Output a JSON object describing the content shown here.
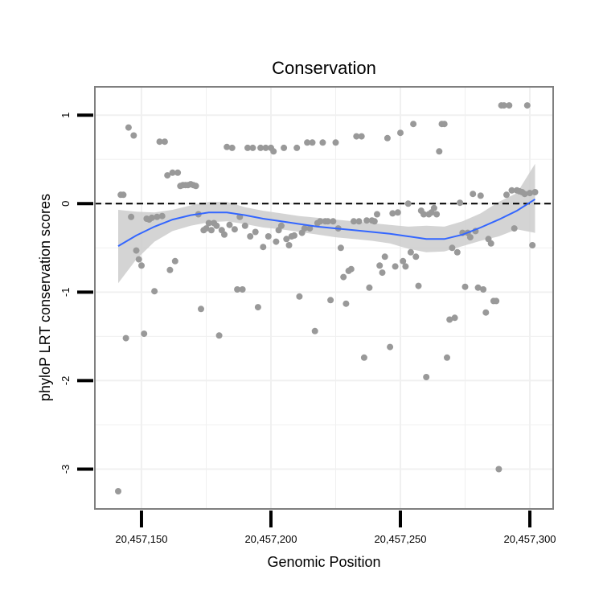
{
  "chart_data": {
    "type": "scatter",
    "title": "Conservation",
    "xlabel": "Genomic Position",
    "ylabel": "phyloP LRT conservation scores",
    "xlim": [
      20457132,
      20457309
    ],
    "ylim": [
      -3.45,
      1.32
    ],
    "x_ticks": [
      20457150,
      20457200,
      20457250,
      20457300
    ],
    "x_tick_labels": [
      "20,457,150",
      "20,457,200",
      "20,457,250",
      "20,457,300"
    ],
    "y_ticks": [
      -3,
      -2,
      -1,
      0,
      1
    ],
    "y_tick_labels": [
      "-3",
      "-2",
      "-1",
      "0",
      "1"
    ],
    "reference_line": {
      "y": 0,
      "style": "dashed"
    },
    "points_color": "#999999",
    "smooth_color": "#3366ff",
    "band_color": "#cccccc",
    "points": [
      [
        20457141,
        -3.25
      ],
      [
        20457142,
        0.1
      ],
      [
        20457143,
        0.1
      ],
      [
        20457144,
        -1.52
      ],
      [
        20457145,
        0.86
      ],
      [
        20457146,
        -0.15
      ],
      [
        20457147,
        0.77
      ],
      [
        20457148,
        -0.53
      ],
      [
        20457149,
        -0.63
      ],
      [
        20457150,
        -0.7
      ],
      [
        20457151,
        -1.47
      ],
      [
        20457152,
        -0.17
      ],
      [
        20457153,
        -0.18
      ],
      [
        20457154,
        -0.16
      ],
      [
        20457155,
        -0.99
      ],
      [
        20457156,
        -0.15
      ],
      [
        20457157,
        0.7
      ],
      [
        20457158,
        -0.14
      ],
      [
        20457159,
        0.7
      ],
      [
        20457160,
        0.32
      ],
      [
        20457161,
        -0.75
      ],
      [
        20457162,
        0.35
      ],
      [
        20457163,
        -0.65
      ],
      [
        20457164,
        0.35
      ],
      [
        20457165,
        0.2
      ],
      [
        20457166,
        0.21
      ],
      [
        20457167,
        0.21
      ],
      [
        20457168,
        0.21
      ],
      [
        20457169,
        0.22
      ],
      [
        20457170,
        0.21
      ],
      [
        20457171,
        0.2
      ],
      [
        20457172,
        -0.12
      ],
      [
        20457173,
        -1.19
      ],
      [
        20457174,
        -0.3
      ],
      [
        20457175,
        -0.28
      ],
      [
        20457176,
        -0.22
      ],
      [
        20457177,
        -0.3
      ],
      [
        20457178,
        -0.22
      ],
      [
        20457179,
        -0.25
      ],
      [
        20457180,
        -1.49
      ],
      [
        20457181,
        -0.3
      ],
      [
        20457182,
        -0.35
      ],
      [
        20457183,
        0.64
      ],
      [
        20457184,
        -0.24
      ],
      [
        20457185,
        0.63
      ],
      [
        20457186,
        -0.29
      ],
      [
        20457187,
        -0.97
      ],
      [
        20457188,
        -0.15
      ],
      [
        20457189,
        -0.97
      ],
      [
        20457190,
        -0.25
      ],
      [
        20457191,
        0.63
      ],
      [
        20457192,
        -0.37
      ],
      [
        20457193,
        0.63
      ],
      [
        20457194,
        -0.32
      ],
      [
        20457195,
        -1.17
      ],
      [
        20457196,
        0.63
      ],
      [
        20457197,
        -0.49
      ],
      [
        20457198,
        0.63
      ],
      [
        20457199,
        -0.37
      ],
      [
        20457200,
        0.63
      ],
      [
        20457201,
        0.59
      ],
      [
        20457202,
        -0.43
      ],
      [
        20457203,
        -0.3
      ],
      [
        20457204,
        -0.25
      ],
      [
        20457205,
        0.63
      ],
      [
        20457206,
        -0.4
      ],
      [
        20457207,
        -0.47
      ],
      [
        20457208,
        -0.37
      ],
      [
        20457209,
        -0.36
      ],
      [
        20457210,
        0.63
      ],
      [
        20457211,
        -1.05
      ],
      [
        20457212,
        -0.33
      ],
      [
        20457213,
        -0.28
      ],
      [
        20457214,
        0.69
      ],
      [
        20457215,
        -0.28
      ],
      [
        20457216,
        0.69
      ],
      [
        20457217,
        -1.44
      ],
      [
        20457218,
        -0.22
      ],
      [
        20457219,
        -0.2
      ],
      [
        20457220,
        0.69
      ],
      [
        20457221,
        -0.2
      ],
      [
        20457222,
        -0.2
      ],
      [
        20457223,
        -1.09
      ],
      [
        20457224,
        -0.2
      ],
      [
        20457225,
        0.69
      ],
      [
        20457226,
        -0.28
      ],
      [
        20457227,
        -0.5
      ],
      [
        20457228,
        -0.83
      ],
      [
        20457229,
        -1.13
      ],
      [
        20457230,
        -0.76
      ],
      [
        20457231,
        -0.74
      ],
      [
        20457232,
        -0.2
      ],
      [
        20457233,
        0.76
      ],
      [
        20457234,
        -0.2
      ],
      [
        20457235,
        0.76
      ],
      [
        20457236,
        -1.74
      ],
      [
        20457237,
        -0.19
      ],
      [
        20457238,
        -0.95
      ],
      [
        20457239,
        -0.19
      ],
      [
        20457240,
        -0.2
      ],
      [
        20457241,
        -0.12
      ],
      [
        20457242,
        -0.7
      ],
      [
        20457243,
        -0.78
      ],
      [
        20457244,
        -0.6
      ],
      [
        20457245,
        0.74
      ],
      [
        20457246,
        -1.62
      ],
      [
        20457247,
        -0.11
      ],
      [
        20457248,
        -0.71
      ],
      [
        20457249,
        -0.1
      ],
      [
        20457250,
        0.8
      ],
      [
        20457251,
        -0.65
      ],
      [
        20457252,
        -0.71
      ],
      [
        20457253,
        0.0
      ],
      [
        20457254,
        -0.55
      ],
      [
        20457255,
        0.9
      ],
      [
        20457256,
        -0.6
      ],
      [
        20457257,
        -0.93
      ],
      [
        20457258,
        -0.08
      ],
      [
        20457259,
        -0.12
      ],
      [
        20457260,
        -1.96
      ],
      [
        20457261,
        -0.12
      ],
      [
        20457262,
        -0.1
      ],
      [
        20457263,
        -0.05
      ],
      [
        20457264,
        -0.12
      ],
      [
        20457265,
        0.59
      ],
      [
        20457266,
        0.9
      ],
      [
        20457267,
        0.9
      ],
      [
        20457268,
        -1.74
      ],
      [
        20457269,
        -1.31
      ],
      [
        20457270,
        -0.5
      ],
      [
        20457271,
        -1.29
      ],
      [
        20457272,
        -0.55
      ],
      [
        20457273,
        0.01
      ],
      [
        20457274,
        -0.33
      ],
      [
        20457275,
        -0.94
      ],
      [
        20457276,
        -0.33
      ],
      [
        20457277,
        -0.38
      ],
      [
        20457278,
        0.11
      ],
      [
        20457279,
        -0.31
      ],
      [
        20457280,
        -0.95
      ],
      [
        20457281,
        0.09
      ],
      [
        20457282,
        -0.97
      ],
      [
        20457283,
        -1.23
      ],
      [
        20457284,
        -0.4
      ],
      [
        20457285,
        -0.45
      ],
      [
        20457286,
        -1.1
      ],
      [
        20457287,
        -1.1
      ],
      [
        20457288,
        -3.0
      ],
      [
        20457289,
        1.11
      ],
      [
        20457290,
        1.11
      ],
      [
        20457291,
        0.1
      ],
      [
        20457292,
        1.11
      ],
      [
        20457293,
        0.15
      ],
      [
        20457294,
        -0.28
      ],
      [
        20457295,
        0.15
      ],
      [
        20457296,
        0.14
      ],
      [
        20457297,
        0.13
      ],
      [
        20457298,
        0.11
      ],
      [
        20457299,
        1.11
      ],
      [
        20457300,
        0.12
      ],
      [
        20457301,
        -0.47
      ],
      [
        20457302,
        0.13
      ]
    ],
    "smooth_x": [
      20457141,
      20457148,
      20457155,
      20457162,
      20457169,
      20457176,
      20457183,
      20457190,
      20457197,
      20457204,
      20457211,
      20457218,
      20457225,
      20457232,
      20457239,
      20457246,
      20457253,
      20457260,
      20457267,
      20457274,
      20457281,
      20457288,
      20457295,
      20457302
    ],
    "smooth_y": [
      -0.48,
      -0.36,
      -0.26,
      -0.18,
      -0.13,
      -0.1,
      -0.1,
      -0.13,
      -0.17,
      -0.2,
      -0.23,
      -0.26,
      -0.28,
      -0.3,
      -0.32,
      -0.34,
      -0.37,
      -0.4,
      -0.4,
      -0.35,
      -0.27,
      -0.18,
      -0.08,
      0.05
    ],
    "band_lo": [
      -0.9,
      -0.63,
      -0.43,
      -0.31,
      -0.25,
      -0.21,
      -0.2,
      -0.23,
      -0.27,
      -0.29,
      -0.32,
      -0.35,
      -0.38,
      -0.4,
      -0.42,
      -0.45,
      -0.51,
      -0.55,
      -0.54,
      -0.48,
      -0.42,
      -0.37,
      -0.29,
      -0.33
    ],
    "band_hi": [
      -0.07,
      -0.09,
      -0.1,
      -0.07,
      -0.02,
      0.02,
      0.02,
      -0.04,
      -0.08,
      -0.11,
      -0.14,
      -0.16,
      -0.18,
      -0.2,
      -0.22,
      -0.24,
      -0.26,
      -0.25,
      -0.26,
      -0.2,
      -0.11,
      0.02,
      0.12,
      0.45
    ]
  }
}
